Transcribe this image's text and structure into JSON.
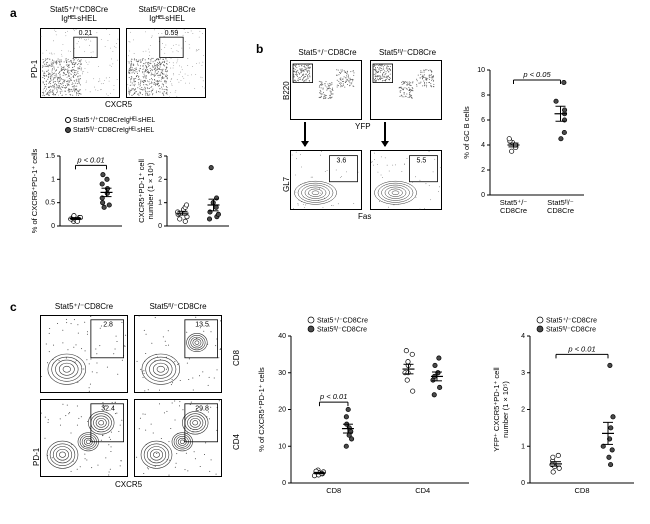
{
  "panelA": {
    "facsTitles": [
      "Stat5⁺/⁺CD8Cre\nIgᴴᴱᴸsHEL",
      "Stat5ᶠˡ/⁻CD8Cre\nIgᴴᴱᴸsHEL"
    ],
    "facsY": "PD-1",
    "facsX": "CXCR5",
    "gateValues": [
      "0.21",
      "0.59"
    ],
    "legend": [
      "Stat5⁺/⁺CD8CreIgᴴᴱᴸsHEL",
      "Stat5ᶠˡ/⁻CD8CreIgᴴᴱᴸsHEL"
    ],
    "chart1": {
      "ylabel": "% of CXCR5⁺PD-1⁺ cells",
      "ylim": [
        0,
        1.5
      ],
      "yticks": [
        0,
        0.5,
        1.0,
        1.5
      ],
      "pvalue": "p < 0.01",
      "group1": [
        0.1,
        0.12,
        0.15,
        0.18,
        0.2,
        0.22,
        0.1,
        0.15,
        0.18
      ],
      "group2": [
        0.4,
        0.5,
        0.6,
        0.7,
        0.8,
        0.9,
        1.0,
        1.1,
        0.45
      ],
      "mean1": 0.16,
      "sem1": 0.02,
      "mean2": 0.72,
      "sem2": 0.09,
      "openColor": "#ffffff",
      "fillColor": "#4a4a4a"
    },
    "chart2": {
      "ylabel": "CXCR5⁺PD-1⁺ cell\nnumber (1 × 10⁴)",
      "ylim": [
        0,
        3
      ],
      "yticks": [
        0,
        1,
        2,
        3
      ],
      "group1": [
        0.3,
        0.4,
        0.5,
        0.6,
        0.7,
        0.8,
        0.9,
        0.2
      ],
      "group2": [
        0.4,
        0.3,
        0.5,
        0.8,
        1.0,
        1.2,
        2.5,
        0.6
      ],
      "mean1": 0.55,
      "sem1": 0.08,
      "mean2": 0.9,
      "sem2": 0.25,
      "openColor": "#ffffff",
      "fillColor": "#4a4a4a"
    }
  },
  "panelB": {
    "facsTitles": [
      "Stat5⁺/⁻CD8Cre",
      "Stat5ᶠˡ/⁻CD8Cre"
    ],
    "topY": "B220",
    "topX": "YFP",
    "botY": "GL7",
    "botX": "Fas",
    "botGateValues": [
      "3.6",
      "5.5"
    ],
    "chart": {
      "ylabel": "% of GC B cells",
      "ylim": [
        0,
        10
      ],
      "yticks": [
        0,
        2,
        4,
        6,
        8,
        10
      ],
      "pvalue": "p < 0.05",
      "xlabels": [
        "Stat5⁺/⁻\nCD8Cre",
        "Stat5ᶠˡ/⁻\nCD8Cre"
      ],
      "group1": [
        3.5,
        3.8,
        4.0,
        4.2,
        4.3,
        4.5,
        4.0
      ],
      "group2": [
        4.5,
        5.0,
        6.0,
        6.5,
        7.5,
        9.0,
        6.8
      ],
      "mean1": 4.0,
      "sem1": 0.15,
      "mean2": 6.5,
      "sem2": 0.6,
      "openColor": "#ffffff",
      "fillColor": "#4a4a4a"
    }
  },
  "panelC": {
    "facsTitles": [
      "Stat5⁺/⁻CD8Cre",
      "Stat5ᶠˡ/⁻CD8Cre"
    ],
    "rowLabels": [
      "CD8",
      "CD4"
    ],
    "facsY": "PD-1",
    "facsX": "CXCR5",
    "gateValues": [
      [
        "2.8",
        "13.5"
      ],
      [
        "32.4",
        "29.8"
      ]
    ],
    "chart1": {
      "ylabel": "% of CXCR5⁺PD-1⁺ cells",
      "ylim": [
        0,
        40
      ],
      "yticks": [
        0,
        10,
        20,
        30,
        40
      ],
      "xlabels": [
        "CD8",
        "CD4"
      ],
      "pvalue": "p < 0.01",
      "legend": [
        "Stat5⁺/⁻CD8Cre",
        "Stat5ᶠˡ/⁻CD8Cre"
      ],
      "cd8_g1": [
        2,
        2.5,
        3,
        3.5,
        2.8,
        2.2,
        3.2,
        2.6
      ],
      "cd8_g2": [
        10,
        12,
        14,
        15,
        16,
        18,
        20,
        13
      ],
      "cd4_g1": [
        25,
        28,
        30,
        32,
        33,
        35,
        36,
        30
      ],
      "cd4_g2": [
        24,
        26,
        28,
        30,
        32,
        34,
        30,
        29
      ],
      "cd8_m1": 2.7,
      "cd8_s1": 0.2,
      "cd8_m2": 14.8,
      "cd8_s2": 1.2,
      "cd4_m1": 31,
      "cd4_s1": 1.3,
      "cd4_m2": 29,
      "cd4_s2": 1.2,
      "openColor": "#ffffff",
      "fillColor": "#4a4a4a"
    },
    "chart2": {
      "ylabel": "YFP⁺ CXCR5⁺PD-1⁺ cell\nnumber (1 × 10⁵)",
      "ylim": [
        0,
        4
      ],
      "yticks": [
        0,
        1,
        2,
        3,
        4
      ],
      "xlabel": "CD8",
      "pvalue": "p < 0.01",
      "legend": [
        "Stat5⁺/⁻CD8Cre",
        "Stat5ᶠˡ/⁻CD8Cre"
      ],
      "group1": [
        0.3,
        0.4,
        0.5,
        0.6,
        0.7,
        0.75,
        0.45,
        0.5
      ],
      "group2": [
        0.5,
        0.7,
        1.0,
        1.5,
        1.8,
        3.2,
        0.9,
        1.2
      ],
      "mean1": 0.52,
      "sem1": 0.06,
      "mean2": 1.35,
      "sem2": 0.3,
      "openColor": "#ffffff",
      "fillColor": "#4a4a4a"
    }
  },
  "style": {
    "dotRadius": 2.2,
    "axisColor": "#000000",
    "errorBarColor": "#000000"
  }
}
